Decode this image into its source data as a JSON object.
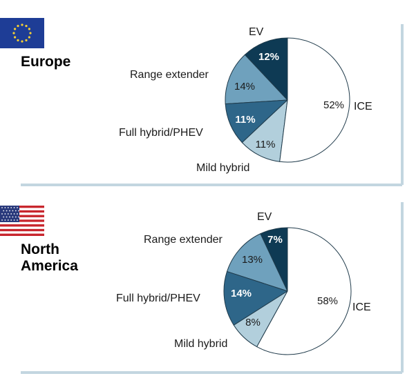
{
  "colors": {
    "ev": "#0e3a54",
    "range_extender": "#6fa1bd",
    "full_hybrid": "#2e6689",
    "mild_hybrid": "#b2cfdc",
    "ice": "#ffffff",
    "panel_border": "#c3d6e0",
    "eu_flag_blue": "#1e3d96",
    "eu_flag_star": "#f5d033",
    "us_flag_red": "#c8262d",
    "us_flag_blue": "#2a3a7c"
  },
  "chart_data": [
    {
      "type": "pie",
      "region": "Europe",
      "flag": "eu-flag-icon",
      "categories": [
        "EV",
        "Range extender",
        "Full hybrid/PHEV",
        "Mild hybrid",
        "ICE"
      ],
      "values": [
        12,
        14,
        11,
        11,
        52
      ],
      "value_labels": [
        "12%",
        "14%",
        "11%",
        "11%",
        "52%"
      ],
      "slice_labels": [
        "EV",
        "Range extender",
        "Full hybrid/PHEV",
        "Mild hybrid",
        "ICE"
      ]
    },
    {
      "type": "pie",
      "region": "North\nAmerica",
      "flag": "us-flag-icon",
      "categories": [
        "EV",
        "Range extender",
        "Full hybrid/PHEV",
        "Mild hybrid",
        "ICE"
      ],
      "values": [
        7,
        13,
        14,
        8,
        58
      ],
      "value_labels": [
        "7%",
        "13%",
        "14%",
        "8%",
        "58%"
      ],
      "slice_labels": [
        "EV",
        "Range extender",
        "Full hybrid/PHEV",
        "Mild hybrid",
        "ICE"
      ]
    }
  ]
}
